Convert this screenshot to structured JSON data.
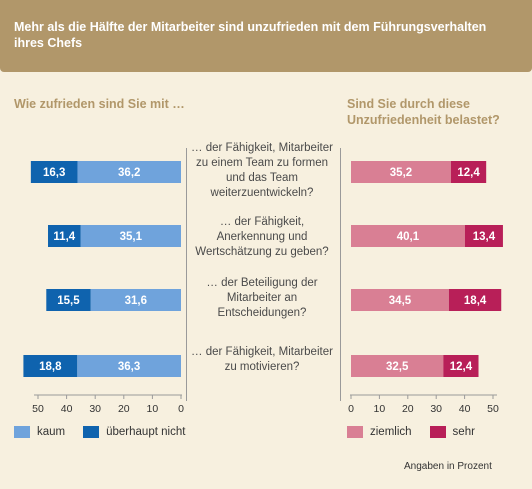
{
  "banner": {
    "title": "Mehr als die Hälfte der Mitarbeiter sind unzufrieden mit dem Führungsverhalten ihres Chefs"
  },
  "left_header": "Wie zufrieden sind Sie mit …",
  "right_header": "Sind Sie durch diese Unzufriedenheit belastet?",
  "questions": [
    "… der Fähigkeit, Mitarbeiter zu einem Team zu formen und das Team weiterzuentwickeln?",
    "… der Fähigkeit, Anerkennung und Wertschätzung zu geben?",
    "… der Beteiligung der Mitarbeiter an Entscheidungen?",
    "… der Fähigkeit, Mitarbeiter zu motivieren?"
  ],
  "legend_left": [
    "kaum",
    "überhaupt nicht"
  ],
  "legend_right": [
    "ziemlich",
    "sehr"
  ],
  "footnote": "Angaben in Prozent",
  "colors": {
    "kaum": "#6fa3dc",
    "ueberhaupt_nicht": "#0f63ae",
    "ziemlich": "#d97f94",
    "sehr": "#b81f58",
    "banner": "#b1976a",
    "background": "#f7f0df"
  },
  "chart_data": [
    {
      "type": "bar",
      "orientation": "horizontal-stacked",
      "title": "Wie zufrieden sind Sie mit …",
      "categories": [
        "… der Fähigkeit, Mitarbeiter zu einem Team zu formen und das Team weiterzuentwickeln?",
        "… der Fähigkeit, Anerkennung und Wertschätzung zu geben?",
        "… der Beteiligung der Mitarbeiter an Entscheidungen?",
        "… der Fähigkeit, Mitarbeiter zu motivieren?"
      ],
      "series": [
        {
          "name": "kaum",
          "values": [
            36.2,
            35.1,
            31.6,
            36.3
          ],
          "value_labels": [
            "36,2",
            "35,1",
            "31,6",
            "36,3"
          ]
        },
        {
          "name": "überhaupt nicht",
          "values": [
            16.3,
            11.4,
            15.5,
            18.8
          ],
          "value_labels": [
            "16,3",
            "11,4",
            "15,5",
            "18,8"
          ]
        }
      ],
      "xlim": [
        0,
        55
      ],
      "x_ticks": [
        "50",
        "40",
        "30",
        "20",
        "10",
        "0"
      ],
      "x_reversed": true
    },
    {
      "type": "bar",
      "orientation": "horizontal-stacked",
      "title": "Sind Sie durch diese Unzufriedenheit belastet?",
      "categories": [
        "… der Fähigkeit, Mitarbeiter zu einem Team zu formen und das Team weiterzuentwickeln?",
        "… der Fähigkeit, Anerkennung und Wertschätzung zu geben?",
        "… der Beteiligung der Mitarbeiter an Entscheidungen?",
        "… der Fähigkeit, Mitarbeiter zu motivieren?"
      ],
      "series": [
        {
          "name": "ziemlich",
          "values": [
            35.2,
            40.1,
            34.5,
            32.5
          ],
          "value_labels": [
            "35,2",
            "40,1",
            "34,5",
            "32,5"
          ]
        },
        {
          "name": "sehr",
          "values": [
            12.4,
            13.4,
            18.4,
            12.4
          ],
          "value_labels": [
            "12,4",
            "13,4",
            "18,4",
            "12,4"
          ]
        }
      ],
      "xlim": [
        0,
        55
      ],
      "x_ticks": [
        "0",
        "10",
        "20",
        "30",
        "40",
        "50"
      ]
    }
  ]
}
